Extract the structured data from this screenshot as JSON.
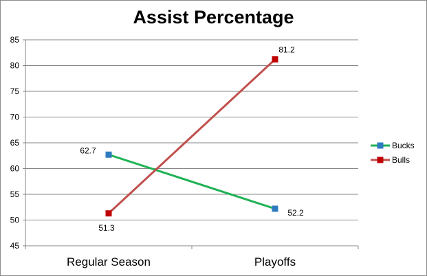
{
  "chart_data": {
    "type": "line",
    "title": "Assist Percentage",
    "categories": [
      "Regular Season",
      "Playoffs"
    ],
    "ylim": [
      45,
      85
    ],
    "yticks": [
      45,
      50,
      55,
      60,
      65,
      70,
      75,
      80,
      85
    ],
    "grid": true,
    "legend_position": "right",
    "series": [
      {
        "name": "Bucks",
        "values": [
          62.7,
          52.2
        ],
        "labels": [
          "62.7",
          "52.2"
        ],
        "color": "#1fb254",
        "marker_color": "#2e7bbf"
      },
      {
        "name": "Bulls",
        "values": [
          51.3,
          81.2
        ],
        "labels": [
          "51.3",
          "81.2"
        ],
        "color": "#c0504d",
        "marker_color": "#c00000"
      }
    ]
  }
}
